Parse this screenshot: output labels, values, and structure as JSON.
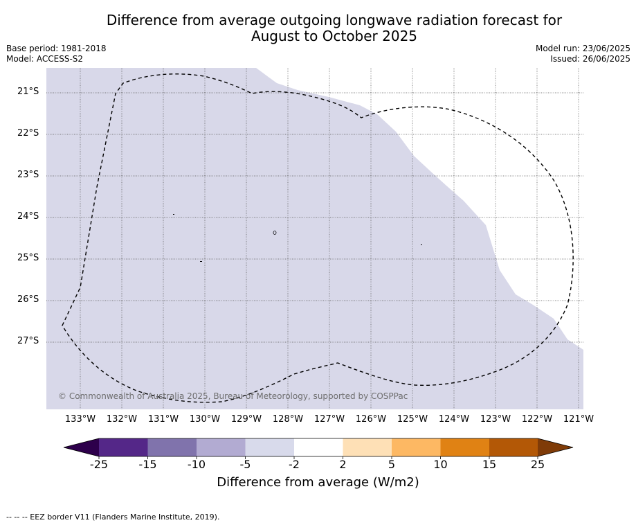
{
  "header": {
    "title_line1": "Difference from average outgoing longwave radiation forecast for",
    "title_line2": "August to October 2025",
    "base_period": "Base period: 1981-2018",
    "model": "Model: ACCESS-S2",
    "model_run": "Model run: 23/06/2025",
    "issued": "Issued: 26/06/2025"
  },
  "map": {
    "latitude_labels": [
      "21°S",
      "22°S",
      "23°S",
      "24°S",
      "25°S",
      "26°S",
      "27°S"
    ],
    "longitude_labels": [
      "133°W",
      "132°W",
      "131°W",
      "130°W",
      "129°W",
      "128°W",
      "127°W",
      "126°W",
      "125°W",
      "124°W",
      "123°W",
      "122°W",
      "121°W"
    ],
    "copyright": "© Commonwealth of Australia 2025, Bureau of Meteorology, supported by COSPPac",
    "colors": {
      "anomaly_fill": "#d8d8e9",
      "neutral": "#ffffff",
      "eez_border": "#000000"
    }
  },
  "colorbar": {
    "ticks": [
      "-25",
      "-15",
      "-10",
      "-5",
      "-2",
      "2",
      "5",
      "10",
      "15",
      "25"
    ],
    "label": "Difference from average (W/m2)",
    "colors": [
      "#2d004b",
      "#542788",
      "#8073ac",
      "#b2abd2",
      "#d8daeb",
      "#ffffff",
      "#fee0b6",
      "#fdb863",
      "#e08214",
      "#b35806",
      "#7f3b08"
    ]
  },
  "footnote": "--  --  -- EEZ border V11 (Flanders Marine Institute, 2019)."
}
